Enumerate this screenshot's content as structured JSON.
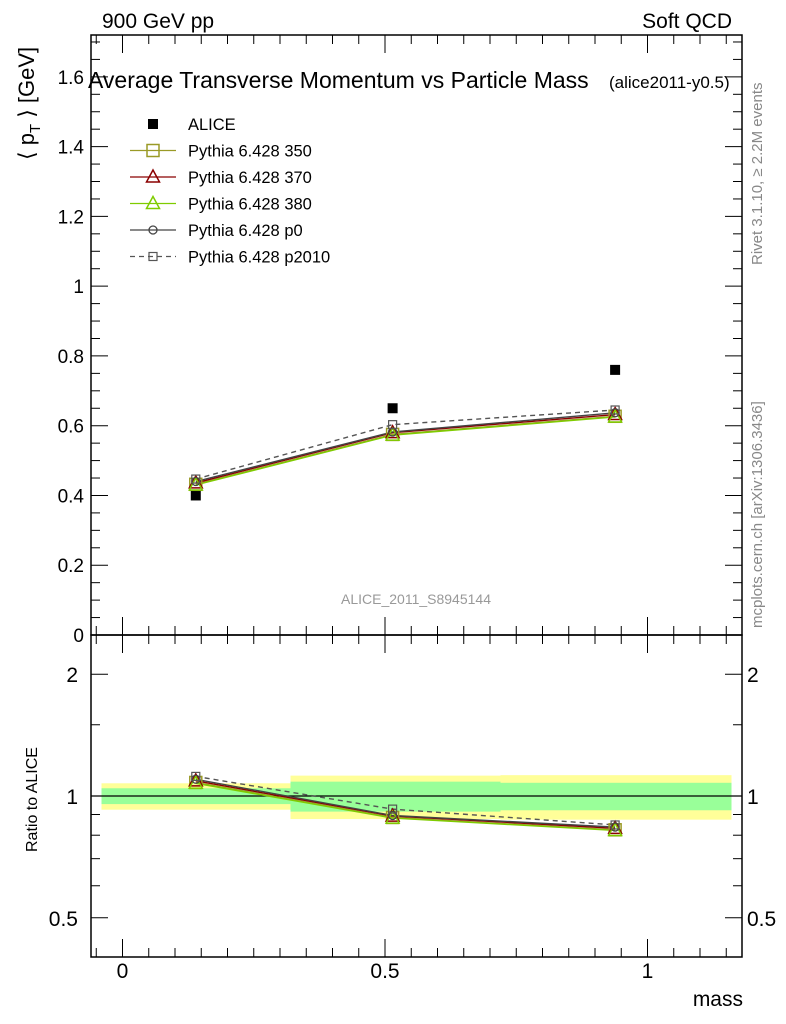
{
  "header": {
    "left": "900 GeV pp",
    "right": "Soft QCD"
  },
  "side_labels": {
    "rivet": "Rivet 3.1.10, ≥ 2.2M events",
    "mcplots": "mcplots.cern.ch [arXiv:1306.3436]"
  },
  "colors": {
    "alice": "#000000",
    "p350": "#9a9a26",
    "p370": "#8b0000",
    "p380": "#7fcc00",
    "p0": "#444444",
    "p2010": "#555555",
    "band_inner": "#99ff99",
    "band_outer": "#ffff99"
  },
  "chart_data": [
    {
      "type": "scatter",
      "title": "Average Transverse Momentum vs Particle Mass",
      "subtitle": "(alice2011-y0.5)",
      "watermark": "ALICE_2011_S8945144",
      "xlabel": "mass",
      "ylabel": "⟨ pT ⟩ [GeV]",
      "ylabel_parts": {
        "open": "⟨ p",
        "sub": "T",
        "close": " ⟩ [GeV]"
      },
      "xlim": [
        -0.06,
        1.18
      ],
      "ylim": [
        0,
        1.72
      ],
      "yticks": [
        0,
        0.2,
        0.4,
        0.6,
        0.8,
        1,
        1.2,
        1.4,
        1.6
      ],
      "ytick_labels": [
        "0",
        "0.2",
        "0.4",
        "0.6",
        "0.8",
        "1",
        "1.2",
        "1.4",
        "1.6"
      ],
      "x": [
        0.1396,
        0.5145,
        0.9383
      ],
      "series": [
        {
          "name": "ALICE",
          "key": "alice",
          "marker": "filled-square",
          "line": "none",
          "values": [
            0.4,
            0.65,
            0.76
          ]
        },
        {
          "name": "Pythia 6.428 350",
          "key": "p350",
          "marker": "open-square",
          "line": "solid",
          "values": [
            0.432,
            0.575,
            0.627
          ]
        },
        {
          "name": "Pythia 6.428 370",
          "key": "p370",
          "marker": "open-triangle",
          "line": "solid",
          "values": [
            0.436,
            0.58,
            0.632
          ]
        },
        {
          "name": "Pythia 6.428 380",
          "key": "p380",
          "marker": "open-triangle",
          "line": "solid",
          "values": [
            0.43,
            0.573,
            0.625
          ]
        },
        {
          "name": "Pythia 6.428 p0",
          "key": "p0",
          "marker": "open-circle",
          "line": "solid",
          "values": [
            0.44,
            0.582,
            0.637
          ]
        },
        {
          "name": "Pythia 6.428 p2010",
          "key": "p2010",
          "marker": "open-square-small",
          "line": "dashed",
          "values": [
            0.447,
            0.603,
            0.645
          ]
        }
      ]
    },
    {
      "type": "line",
      "ylabel": "Ratio to ALICE",
      "xlabel": "mass",
      "yscale": "log",
      "ylim": [
        0.4,
        2.5
      ],
      "yticks": [
        0.5,
        1,
        2
      ],
      "ytick_labels": [
        "0.5",
        "1",
        "2"
      ],
      "xticks": [
        0,
        0.5,
        1
      ],
      "xtick_labels": [
        "0",
        "0.5",
        "1"
      ],
      "xlim": [
        -0.06,
        1.18
      ],
      "bands": [
        {
          "xmin": -0.04,
          "xmax": 0.32,
          "inner": [
            0.955,
            1.045
          ],
          "outer": [
            0.925,
            1.075
          ]
        },
        {
          "xmin": 0.32,
          "xmax": 0.72,
          "inner": [
            0.915,
            1.085
          ],
          "outer": [
            0.877,
            1.123
          ]
        },
        {
          "xmin": 0.72,
          "xmax": 1.16,
          "inner": [
            0.922,
            1.078
          ],
          "outer": [
            0.874,
            1.126
          ]
        }
      ],
      "x": [
        0.1396,
        0.5145,
        0.9383
      ],
      "series": [
        {
          "name": "Pythia 6.428 350",
          "key": "p350",
          "marker": "open-square",
          "line": "solid",
          "values": [
            1.08,
            0.885,
            0.825
          ]
        },
        {
          "name": "Pythia 6.428 370",
          "key": "p370",
          "marker": "open-triangle",
          "line": "solid",
          "values": [
            1.09,
            0.892,
            0.832
          ]
        },
        {
          "name": "Pythia 6.428 380",
          "key": "p380",
          "marker": "open-triangle",
          "line": "solid",
          "values": [
            1.075,
            0.882,
            0.822
          ]
        },
        {
          "name": "Pythia 6.428 p0",
          "key": "p0",
          "marker": "open-circle",
          "line": "solid",
          "values": [
            1.1,
            0.895,
            0.838
          ]
        },
        {
          "name": "Pythia 6.428 p2010",
          "key": "p2010",
          "marker": "open-square-small",
          "line": "dashed",
          "values": [
            1.118,
            0.928,
            0.848
          ]
        }
      ]
    }
  ]
}
